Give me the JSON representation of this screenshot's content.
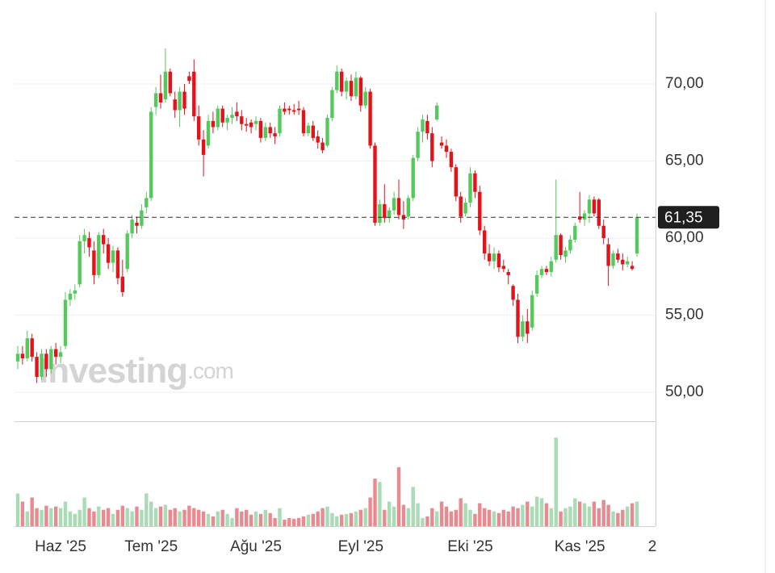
{
  "chart_data": {
    "type": "candlestick",
    "categories": [
      null,
      null,
      null,
      null,
      null,
      null,
      null,
      null,
      null,
      "Haz '25",
      null,
      null,
      null,
      null,
      null,
      null,
      null,
      null,
      null,
      null,
      null,
      null,
      null,
      null,
      null,
      null,
      null,
      null,
      "Tem '25",
      null,
      null,
      null,
      null,
      null,
      null,
      null,
      null,
      null,
      null,
      null,
      null,
      null,
      null,
      null,
      null,
      null,
      null,
      null,
      null,
      null,
      "Ağu '25",
      null,
      null,
      null,
      null,
      null,
      null,
      null,
      null,
      null,
      null,
      null,
      null,
      null,
      null,
      null,
      null,
      null,
      null,
      null,
      null,
      null,
      "Eyl '25",
      null,
      null,
      null,
      null,
      null,
      null,
      null,
      null,
      null,
      null,
      null,
      null,
      null,
      null,
      null,
      null,
      null,
      null,
      null,
      null,
      null,
      null,
      "Eki '25",
      null,
      null,
      null,
      null,
      null,
      null,
      null,
      null,
      null,
      null,
      null,
      null,
      null,
      null,
      null,
      null,
      null,
      null,
      null,
      null,
      null,
      null,
      "Kas '25",
      null,
      null,
      null,
      null,
      null,
      null,
      null,
      null,
      null,
      null,
      null,
      null
    ],
    "axis_end_label": "2",
    "open": [
      52.0,
      52.5,
      52.2,
      53.5,
      52.3,
      51.0,
      52.5,
      51.5,
      52.8,
      52.3,
      53.0,
      56.0,
      56.4,
      57.0,
      59.8,
      60.0,
      59.2,
      57.6,
      60.2,
      59.6,
      58.4,
      59.2,
      57.5,
      58.0,
      60.3,
      61.0,
      60.8,
      62.0,
      62.6,
      68.5,
      69.4,
      69.0,
      70.8,
      69.0,
      68.3,
      69.5,
      70.5,
      70.8,
      67.9,
      66.4,
      66.0,
      67.6,
      67.2,
      68.4,
      67.5,
      67.8,
      68.2,
      67.9,
      67.4,
      67.5,
      67.4,
      67.6,
      66.5,
      67.2,
      66.8,
      66.8,
      68.4,
      68.4,
      68.3,
      68.4,
      68.3,
      66.8,
      67.3,
      66.6,
      66.2,
      66.0,
      67.8,
      69.6,
      70.8,
      69.5,
      70.2,
      69.2,
      70.4,
      68.6,
      69.5,
      66.0,
      61.0,
      62.2,
      61.3,
      61.8,
      62.6,
      61.5,
      61.4,
      62.6,
      65.2,
      66.9,
      67.6,
      66.8,
      67.7,
      66.2,
      66.0,
      65.6,
      64.6,
      62.7,
      61.6,
      62.3,
      64.2,
      63.0,
      60.5,
      59.0,
      58.5,
      59.0,
      58.2,
      57.8,
      56.9,
      56.0,
      53.6,
      54.6,
      54.2,
      56.4,
      57.6,
      58.0,
      57.8,
      58.6,
      60.2,
      58.8,
      59.2,
      59.9,
      61.4,
      61.2,
      61.6,
      62.5,
      62.5,
      60.8,
      59.6,
      58.2,
      59.0,
      58.6,
      58.3,
      58.2,
      59.0
    ],
    "high": [
      53.0,
      53.0,
      54.0,
      53.8,
      52.6,
      52.8,
      52.8,
      53.0,
      53.2,
      53.0,
      56.5,
      56.7,
      57.0,
      60.2,
      60.6,
      60.4,
      59.8,
      60.4,
      60.6,
      60.0,
      59.5,
      59.4,
      58.6,
      60.5,
      61.5,
      61.4,
      62.2,
      63.0,
      68.5,
      69.8,
      70.6,
      72.3,
      71.0,
      69.5,
      69.8,
      70.0,
      70.8,
      71.6,
      68.6,
      67.0,
      68.0,
      68.2,
      68.6,
      68.6,
      68.0,
      68.5,
      68.8,
      68.3,
      67.8,
      67.7,
      67.9,
      67.8,
      67.5,
      67.5,
      67.2,
      68.6,
      68.8,
      68.6,
      68.7,
      68.9,
      68.5,
      67.5,
      67.6,
      67.0,
      66.5,
      68.0,
      69.8,
      71.2,
      71.0,
      70.4,
      70.6,
      70.8,
      70.5,
      69.8,
      69.7,
      66.2,
      62.5,
      63.5,
      62.0,
      63.0,
      63.8,
      62.4,
      62.8,
      65.4,
      67.2,
      68.0,
      68.0,
      67.2,
      68.8,
      66.6,
      66.4,
      65.8,
      64.8,
      63.0,
      62.6,
      64.6,
      64.4,
      63.4,
      60.8,
      59.6,
      59.4,
      59.2,
      58.6,
      58.0,
      57.0,
      56.4,
      55.0,
      55.4,
      56.6,
      57.9,
      58.2,
      58.2,
      58.8,
      63.8,
      60.3,
      59.4,
      60.2,
      61.0,
      63.0,
      61.8,
      62.8,
      62.7,
      62.6,
      61.2,
      60.0,
      59.2,
      59.3,
      59.0,
      58.8,
      58.5,
      61.6
    ],
    "low": [
      51.5,
      51.8,
      52.0,
      52.0,
      50.6,
      50.8,
      51.0,
      51.2,
      51.8,
      51.9,
      52.8,
      55.6,
      56.0,
      56.8,
      59.0,
      58.8,
      57.0,
      57.4,
      59.0,
      58.0,
      57.8,
      57.0,
      56.2,
      57.8,
      60.0,
      60.3,
      60.6,
      61.6,
      62.4,
      68.0,
      68.4,
      68.8,
      69.2,
      67.8,
      67.2,
      68.0,
      70.0,
      67.6,
      66.0,
      64.0,
      65.8,
      66.8,
      67.0,
      67.2,
      67.0,
      67.4,
      67.6,
      67.0,
      66.9,
      66.8,
      67.0,
      66.2,
      66.3,
      66.5,
      66.1,
      66.6,
      68.0,
      68.0,
      68.0,
      68.0,
      66.6,
      66.6,
      66.3,
      65.8,
      65.5,
      65.9,
      67.6,
      69.4,
      69.2,
      69.0,
      68.9,
      69.0,
      68.2,
      68.4,
      65.8,
      60.8,
      60.8,
      61.0,
      61.0,
      61.5,
      61.2,
      60.6,
      61.2,
      62.4,
      65.0,
      66.2,
      66.4,
      64.6,
      67.6,
      65.8,
      65.2,
      64.3,
      62.4,
      61.0,
      61.4,
      62.0,
      62.6,
      60.2,
      58.6,
      58.2,
      58.0,
      57.8,
      57.8,
      57.0,
      55.6,
      53.2,
      53.3,
      53.2,
      54.0,
      56.2,
      57.4,
      57.6,
      57.5,
      58.4,
      58.6,
      58.4,
      59.0,
      59.7,
      61.0,
      60.8,
      61.0,
      61.4,
      60.6,
      59.6,
      56.9,
      58.0,
      58.4,
      57.9,
      58.1,
      57.9,
      58.8
    ],
    "close": [
      52.5,
      52.2,
      53.5,
      52.3,
      51.0,
      52.5,
      51.5,
      52.8,
      52.3,
      52.6,
      56.0,
      56.4,
      56.6,
      59.8,
      60.2,
      59.4,
      57.6,
      60.2,
      59.6,
      58.4,
      59.2,
      57.4,
      56.5,
      60.3,
      61.2,
      60.8,
      61.8,
      62.6,
      68.2,
      69.4,
      68.8,
      70.8,
      69.4,
      68.3,
      69.5,
      68.4,
      70.2,
      67.9,
      66.4,
      65.4,
      67.6,
      67.2,
      68.4,
      67.5,
      67.8,
      68.0,
      67.9,
      67.4,
      67.3,
      67.2,
      67.6,
      66.5,
      67.2,
      66.8,
      66.6,
      68.4,
      68.2,
      68.3,
      68.2,
      68.3,
      66.8,
      67.3,
      66.5,
      66.2,
      65.7,
      67.8,
      69.6,
      70.8,
      69.5,
      70.2,
      69.2,
      70.4,
      68.6,
      69.5,
      66.0,
      61.0,
      62.2,
      61.3,
      61.8,
      62.6,
      61.5,
      61.2,
      62.6,
      65.2,
      66.9,
      67.7,
      66.8,
      65.0,
      68.6,
      66.0,
      65.6,
      64.6,
      62.7,
      61.4,
      62.3,
      64.2,
      63.0,
      60.5,
      59.0,
      58.5,
      59.0,
      58.1,
      58.0,
      57.6,
      56.0,
      53.6,
      54.6,
      53.8,
      56.3,
      57.6,
      58.0,
      57.8,
      58.5,
      60.2,
      58.9,
      59.2,
      59.9,
      60.8,
      61.2,
      61.6,
      62.5,
      61.6,
      60.8,
      60.0,
      58.2,
      59.0,
      58.6,
      58.3,
      58.5,
      58.0,
      61.35
    ],
    "volume": [
      40,
      30,
      18,
      35,
      22,
      20,
      25,
      22,
      24,
      22,
      30,
      18,
      15,
      20,
      35,
      22,
      18,
      24,
      20,
      22,
      15,
      20,
      25,
      22,
      18,
      24,
      20,
      40,
      30,
      22,
      24,
      26,
      20,
      22,
      18,
      20,
      25,
      22,
      20,
      18,
      15,
      12,
      18,
      20,
      15,
      10,
      22,
      18,
      20,
      14,
      18,
      15,
      20,
      16,
      10,
      22,
      8,
      10,
      9,
      10,
      12,
      14,
      15,
      18,
      22,
      24,
      16,
      12,
      14,
      15,
      16,
      18,
      20,
      22,
      35,
      58,
      54,
      20,
      30,
      24,
      72,
      26,
      22,
      48,
      28,
      10,
      12,
      22,
      18,
      30,
      24,
      18,
      20,
      34,
      28,
      20,
      15,
      28,
      22,
      20,
      18,
      16,
      20,
      18,
      24,
      22,
      26,
      30,
      24,
      36,
      34,
      28,
      22,
      108,
      18,
      22,
      24,
      34,
      30,
      28,
      24,
      30,
      22,
      32,
      26,
      18,
      16,
      20,
      24,
      28,
      30
    ],
    "up_color": "#54c95c",
    "down_color": "#e3121b",
    "volume_up_color": "#a9dcb5",
    "volume_down_color": "#e88a90",
    "ylim": [
      48.12,
      74.66
    ],
    "yticks": [
      {
        "value": 50,
        "label": "50,00"
      },
      {
        "value": 55,
        "label": "55,00"
      },
      {
        "value": 60,
        "label": "60,00"
      },
      {
        "value": 65,
        "label": "65,00"
      },
      {
        "value": 70,
        "label": "70,00"
      }
    ],
    "volume_lim": [
      0,
      125
    ],
    "last_price": {
      "value": 61.35,
      "label": "61,35"
    },
    "grid": true,
    "watermark": [
      "Investing",
      ".com"
    ]
  }
}
